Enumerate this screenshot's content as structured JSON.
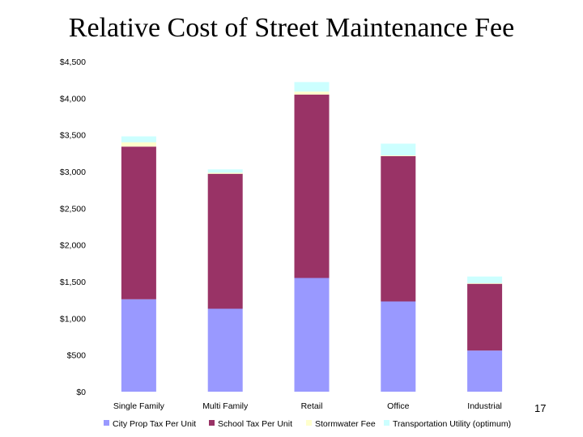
{
  "title": "Relative Cost of Street Maintenance Fee",
  "page_number": "17",
  "chart_data": {
    "type": "bar",
    "stacked": true,
    "categories": [
      "Single Family",
      "Multi Family",
      "Retail",
      "Office",
      "Industrial"
    ],
    "series": [
      {
        "name": "City Prop Tax Per Unit",
        "color": "#9999ff",
        "values": [
          1260,
          1130,
          1550,
          1230,
          560
        ]
      },
      {
        "name": "School Tax Per Unit",
        "color": "#993366",
        "values": [
          2080,
          1840,
          2500,
          1980,
          910
        ]
      },
      {
        "name": "Stormwater Fee",
        "color": "#ffffcc",
        "values": [
          60,
          15,
          40,
          10,
          10
        ]
      },
      {
        "name": "Transportation Utility (optimum)",
        "color": "#ccffff",
        "values": [
          80,
          45,
          130,
          160,
          90
        ]
      }
    ],
    "ylim": [
      0,
      4500
    ],
    "yticks": [
      0,
      500,
      1000,
      1500,
      2000,
      2500,
      3000,
      3500,
      4000,
      4500
    ],
    "ytick_labels": [
      "$0",
      "$500",
      "$1,000",
      "$1,500",
      "$2,000",
      "$2,500",
      "$3,000",
      "$3,500",
      "$4,000",
      "$4,500"
    ],
    "xlabel": "",
    "ylabel": "",
    "grid": false,
    "legend_position": "bottom"
  }
}
